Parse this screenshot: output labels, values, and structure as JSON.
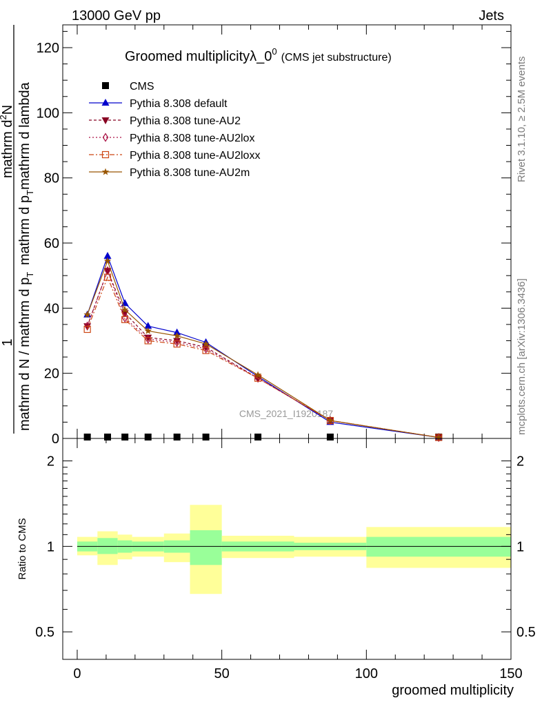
{
  "header": {
    "left": "13000 GeV pp",
    "right": "Jets"
  },
  "side_labels": {
    "rivet": "Rivet 3.1.10, ≥ 2.5M events",
    "mcplots": "mcplots.cern.ch [arXiv:1306.3436]"
  },
  "watermark": "CMS_2021_I1920187",
  "chart_data": [
    {
      "type": "line",
      "title": "Groomed multiplicityλ_0",
      "title_sup": "0",
      "subtitle": "(CMS jet substructure)",
      "ylabel_num": "1",
      "ylabel_den": "mathrm d N / mathrm d p",
      "ylabel_den_sub": "T",
      "ylabel_num_text": "mathrm d",
      "ylabel_num_sup": "2",
      "ylabel_num_text2": "N",
      "ylabel_num_line2": "mathrm d p",
      "ylabel_num_line2_sub": "T",
      "ylabel_num_line2_tail": "mathrm d lambda",
      "xlim": [
        -5,
        150
      ],
      "ylim": [
        0,
        127
      ],
      "yticks": [
        0,
        20,
        40,
        60,
        80,
        100,
        120
      ],
      "legend_position": "top-left",
      "x": [
        3.5,
        10.5,
        16.5,
        24.5,
        34.5,
        44.5,
        62.5,
        87.5,
        125
      ],
      "series": [
        {
          "name": "CMS",
          "color": "#000000",
          "marker": "square",
          "values": [
            0.3,
            0.3,
            0.3,
            0.3,
            0.3,
            0.3,
            0.3,
            0.3,
            0.3
          ]
        },
        {
          "name": "Pythia 8.308 default",
          "color": "#0000cc",
          "marker": "triangle-up",
          "dash": "",
          "values": [
            38.0,
            56.0,
            41.5,
            34.5,
            32.5,
            29.5,
            19.0,
            5.0,
            0.3
          ]
        },
        {
          "name": "Pythia 8.308 tune-AU2",
          "color": "#880022",
          "marker": "triangle-down",
          "dash": "4,3",
          "values": [
            34.5,
            51.5,
            38.5,
            31.0,
            30.0,
            28.0,
            18.5,
            5.5,
            0.3
          ]
        },
        {
          "name": "Pythia 8.308 tune-AU2lox",
          "color": "#aa1144",
          "marker": "diamond-open",
          "dash": "2,3",
          "values": [
            34.5,
            51.5,
            37.0,
            30.5,
            29.5,
            27.5,
            18.5,
            5.5,
            0.3
          ]
        },
        {
          "name": "Pythia 8.308 tune-AU2loxx",
          "color": "#cc4411",
          "marker": "square-open",
          "dash": "7,3,2,3",
          "values": [
            33.5,
            49.5,
            36.5,
            30.0,
            29.0,
            27.0,
            18.5,
            5.5,
            0.3
          ]
        },
        {
          "name": "Pythia 8.308 tune-AU2m",
          "color": "#995500",
          "marker": "star",
          "dash": "",
          "values": [
            38.0,
            54.5,
            39.5,
            33.0,
            31.5,
            29.0,
            19.5,
            5.5,
            0.3
          ]
        }
      ]
    },
    {
      "type": "area",
      "ylabel": "Ratio to CMS",
      "xlabel": "groomed multiplicity",
      "xlim": [
        -5,
        150
      ],
      "xticks": [
        0,
        50,
        100,
        150
      ],
      "ylim": [
        0.4,
        2.4
      ],
      "log_y": true,
      "yticks": [
        0.5,
        1,
        2
      ],
      "bins": [
        {
          "lo": 0,
          "hi": 7,
          "inner": [
            0.96,
            1.04
          ],
          "outer": [
            0.93,
            1.08
          ]
        },
        {
          "lo": 7,
          "hi": 14,
          "inner": [
            0.94,
            1.07
          ],
          "outer": [
            0.86,
            1.13
          ]
        },
        {
          "lo": 14,
          "hi": 19,
          "inner": [
            0.95,
            1.05
          ],
          "outer": [
            0.9,
            1.1
          ]
        },
        {
          "lo": 19,
          "hi": 30,
          "inner": [
            0.96,
            1.04
          ],
          "outer": [
            0.92,
            1.08
          ]
        },
        {
          "lo": 30,
          "hi": 39,
          "inner": [
            0.95,
            1.05
          ],
          "outer": [
            0.88,
            1.11
          ]
        },
        {
          "lo": 39,
          "hi": 50,
          "inner": [
            0.86,
            1.14
          ],
          "outer": [
            0.68,
            1.4
          ]
        },
        {
          "lo": 50,
          "hi": 75,
          "inner": [
            0.96,
            1.04
          ],
          "outer": [
            0.91,
            1.09
          ]
        },
        {
          "lo": 75,
          "hi": 100,
          "inner": [
            0.97,
            1.03
          ],
          "outer": [
            0.92,
            1.08
          ]
        },
        {
          "lo": 100,
          "hi": 150,
          "inner": [
            0.92,
            1.08
          ],
          "outer": [
            0.84,
            1.17
          ]
        }
      ]
    }
  ]
}
